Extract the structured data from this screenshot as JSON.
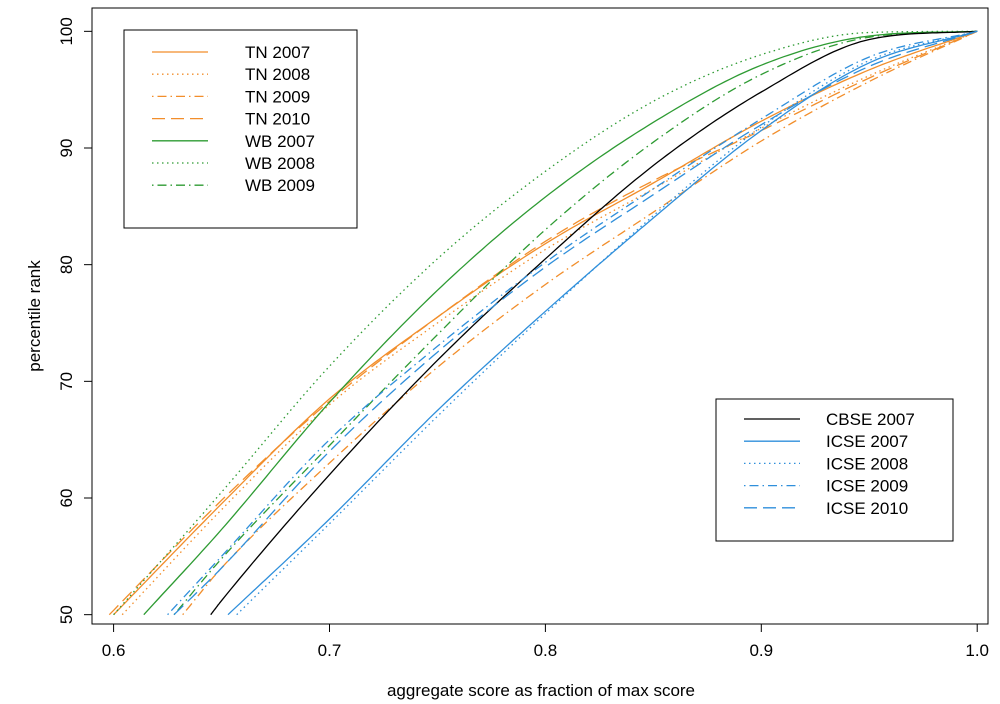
{
  "chart_data": {
    "type": "line",
    "title": "",
    "xlabel": "aggregate score as fraction of max score",
    "ylabel": "percentile rank",
    "xlim": [
      0.59,
      1.005
    ],
    "ylim": [
      49.2,
      102
    ],
    "xticks": [
      "0.6",
      "0.7",
      "0.8",
      "0.9",
      "1.0"
    ],
    "yticks": [
      "50",
      "60",
      "70",
      "80",
      "90",
      "100"
    ],
    "grid": false,
    "colors": {
      "TN": "#f28e2b",
      "WB": "#2e9b33",
      "CBSE": "#000000",
      "ICSE": "#2f8fdb"
    },
    "legends": [
      {
        "position": "top-left",
        "entries": [
          "TN 2007",
          "TN 2008",
          "TN 2009",
          "TN 2010",
          "WB 2007",
          "WB 2008",
          "WB 2009"
        ]
      },
      {
        "position": "bottom-right",
        "entries": [
          "CBSE 2007",
          "ICSE 2007",
          "ICSE 2008",
          "ICSE 2009",
          "ICSE 2010"
        ]
      }
    ],
    "series": [
      {
        "name": "TN 2007",
        "color": "#f28e2b",
        "dash": "solid",
        "x": [
          0.6,
          0.65,
          0.7,
          0.75,
          0.8,
          0.85,
          0.9,
          0.95,
          1.0
        ],
        "y": [
          50,
          59.5,
          68.5,
          75.5,
          81.8,
          87.0,
          92.3,
          96.7,
          100
        ]
      },
      {
        "name": "TN 2008",
        "color": "#f28e2b",
        "dash": "dotted",
        "x": [
          0.604,
          0.65,
          0.7,
          0.75,
          0.8,
          0.85,
          0.9,
          0.95,
          1.0
        ],
        "y": [
          50,
          59.0,
          68.0,
          75.0,
          81.3,
          86.5,
          91.7,
          96.2,
          100
        ]
      },
      {
        "name": "TN 2009",
        "color": "#f28e2b",
        "dash": "dotdash",
        "x": [
          0.632,
          0.65,
          0.7,
          0.75,
          0.8,
          0.85,
          0.9,
          0.95,
          1.0
        ],
        "y": [
          50,
          54.0,
          63.0,
          71.2,
          78.3,
          84.5,
          90.6,
          95.7,
          100
        ]
      },
      {
        "name": "TN 2010",
        "color": "#f28e2b",
        "dash": "longdash",
        "x": [
          0.598,
          0.65,
          0.7,
          0.75,
          0.8,
          0.85,
          0.9,
          0.95,
          1.0
        ],
        "y": [
          50,
          59.8,
          68.3,
          75.5,
          82.0,
          87.2,
          91.5,
          96.0,
          100
        ]
      },
      {
        "name": "WB 2007",
        "color": "#2e9b33",
        "dash": "solid",
        "x": [
          0.614,
          0.65,
          0.7,
          0.75,
          0.8,
          0.85,
          0.9,
          0.95,
          1.0
        ],
        "y": [
          50,
          57.3,
          68.2,
          77.8,
          85.8,
          92.2,
          97.1,
          99.6,
          100
        ]
      },
      {
        "name": "WB 2008",
        "color": "#2e9b33",
        "dash": "dotted",
        "x": [
          0.6,
          0.65,
          0.7,
          0.75,
          0.8,
          0.85,
          0.9,
          0.95,
          1.0
        ],
        "y": [
          50,
          60.5,
          71.3,
          80.5,
          88.0,
          94.0,
          98.0,
          99.9,
          100
        ]
      },
      {
        "name": "WB 2009",
        "color": "#2e9b33",
        "dash": "dotdash",
        "x": [
          0.628,
          0.65,
          0.7,
          0.75,
          0.8,
          0.85,
          0.9,
          0.95,
          1.0
        ],
        "y": [
          50,
          54.8,
          64.5,
          74.0,
          83.0,
          90.5,
          96.3,
          99.5,
          100
        ]
      },
      {
        "name": "CBSE 2007",
        "color": "#000000",
        "dash": "solid",
        "x": [
          0.645,
          0.65,
          0.7,
          0.75,
          0.8,
          0.85,
          0.9,
          0.95,
          1.0
        ],
        "y": [
          50,
          51.2,
          62.0,
          71.8,
          80.5,
          88.5,
          94.8,
          99.3,
          100
        ]
      },
      {
        "name": "ICSE 2007",
        "color": "#2f8fdb",
        "dash": "solid",
        "x": [
          0.653,
          0.7,
          0.75,
          0.8,
          0.85,
          0.9,
          0.95,
          1.0
        ],
        "y": [
          50,
          58.2,
          67.5,
          76.0,
          84.0,
          91.5,
          97.3,
          100
        ]
      },
      {
        "name": "ICSE 2008",
        "color": "#2f8fdb",
        "dash": "dotted",
        "x": [
          0.657,
          0.7,
          0.75,
          0.8,
          0.85,
          0.9,
          0.95,
          1.0
        ],
        "y": [
          50,
          57.8,
          67.0,
          75.8,
          84.2,
          91.8,
          97.5,
          100
        ]
      },
      {
        "name": "ICSE 2009",
        "color": "#2f8fdb",
        "dash": "dotdash",
        "x": [
          0.625,
          0.65,
          0.7,
          0.75,
          0.8,
          0.85,
          0.9,
          0.95,
          1.0
        ],
        "y": [
          50,
          55.0,
          65.0,
          73.0,
          80.2,
          86.5,
          92.5,
          97.8,
          100
        ]
      },
      {
        "name": "ICSE 2010",
        "color": "#2f8fdb",
        "dash": "longdash",
        "x": [
          0.628,
          0.65,
          0.7,
          0.75,
          0.8,
          0.85,
          0.9,
          0.95,
          1.0
        ],
        "y": [
          50,
          54.0,
          64.0,
          72.5,
          79.8,
          86.0,
          92.0,
          97.0,
          100
        ]
      }
    ]
  }
}
